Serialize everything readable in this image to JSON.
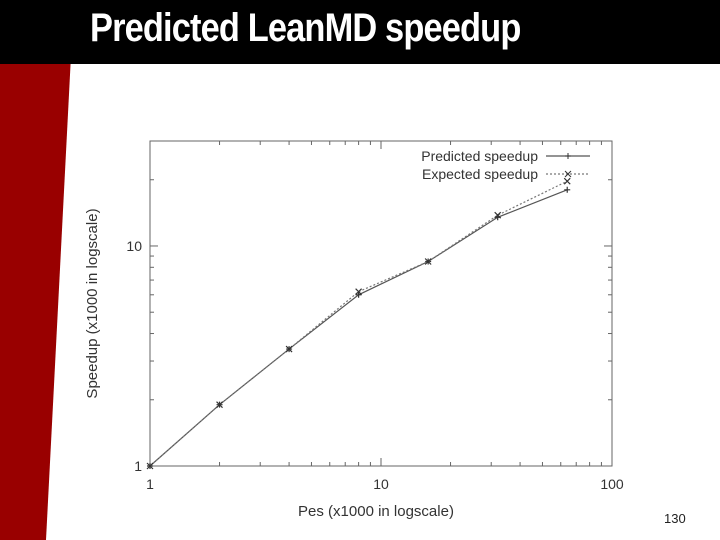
{
  "slide": {
    "title": "Predicted LeanMD speedup",
    "page_number": "130",
    "accent_color": "#990000",
    "header_color": "#000000"
  },
  "chart_data": {
    "type": "line",
    "title": "",
    "xlabel": "Pes (x1000 in logscale)",
    "ylabel": "Speedup (x1000 in logscale)",
    "xscale": "log",
    "yscale": "log",
    "xlim": [
      1,
      100
    ],
    "ylim": [
      1,
      30
    ],
    "xticks": [
      1,
      10,
      100
    ],
    "xtick_labels": [
      "1",
      "10",
      "100"
    ],
    "yticks": [
      1,
      10
    ],
    "ytick_labels": [
      "1",
      "10"
    ],
    "grid": false,
    "legend": "top-right",
    "series": [
      {
        "name": "Predicted speedup",
        "marker": "+",
        "dash": "solid",
        "color": "#555555",
        "x": [
          1,
          2,
          4,
          8,
          16,
          32,
          64
        ],
        "y": [
          1,
          1.9,
          3.4,
          6.0,
          8.5,
          13.5,
          18.0
        ]
      },
      {
        "name": "Expected speedup",
        "marker": "x",
        "dash": "dotted",
        "color": "#777777",
        "x": [
          1,
          2,
          4,
          8,
          16,
          32,
          64
        ],
        "y": [
          1,
          1.9,
          3.4,
          6.2,
          8.5,
          13.8,
          19.7
        ]
      }
    ]
  }
}
